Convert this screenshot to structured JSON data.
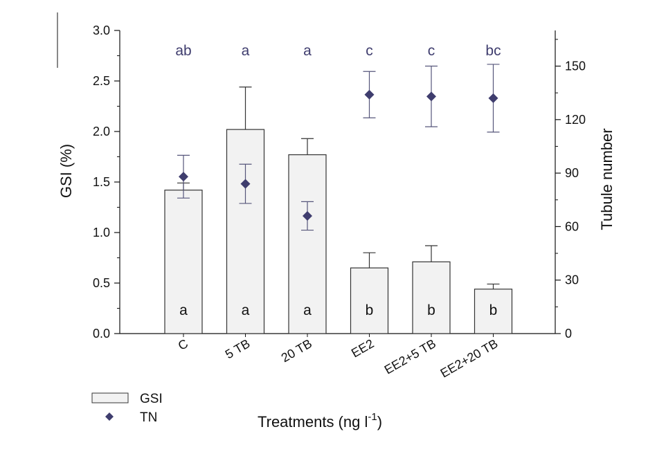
{
  "chart_data": {
    "type": "bar",
    "categories": [
      "C",
      "5 TB",
      "20 TB",
      "EE2",
      "EE2+5 TB",
      "EE2+20 TB"
    ],
    "xlabel": "Treatments (ng l",
    "xlabel_sup": "-1",
    "xlabel_end": ")",
    "ylabel": "GSI (%)",
    "ylabel_right": "Tubule number",
    "ylim": [
      0,
      3.0
    ],
    "ylim_right": [
      0,
      170
    ],
    "yticks": [
      "0.0",
      "0.5",
      "1.0",
      "1.5",
      "2.0",
      "2.5",
      "3.0"
    ],
    "yticks_right": [
      "0",
      "30",
      "60",
      "90",
      "120",
      "150"
    ],
    "series": [
      {
        "name": "GSI",
        "type": "bar",
        "axis": "left",
        "values": [
          1.42,
          2.02,
          1.77,
          0.65,
          0.71,
          0.44
        ],
        "error": [
          0.07,
          0.42,
          0.16,
          0.15,
          0.16,
          0.05
        ],
        "letters": [
          "a",
          "a",
          "a",
          "b",
          "b",
          "b"
        ]
      },
      {
        "name": "TN",
        "type": "scatter",
        "axis": "right",
        "values": [
          88,
          84,
          66,
          134,
          133,
          132
        ],
        "error": [
          12,
          11,
          8,
          13,
          17,
          19
        ],
        "letters": [
          "ab",
          "a",
          "a",
          "c",
          "c",
          "bc"
        ]
      }
    ],
    "legend": [
      {
        "label": "GSI",
        "marker": "bar"
      },
      {
        "label": "TN",
        "marker": "diamond"
      }
    ],
    "legend_position": "bottom-left",
    "colors": {
      "bar_fill": "#f2f2f2",
      "bar_stroke": "#333333",
      "marker": "#3f3d6e",
      "letters_top": "#3f3d6e",
      "axis": "#111111"
    }
  }
}
